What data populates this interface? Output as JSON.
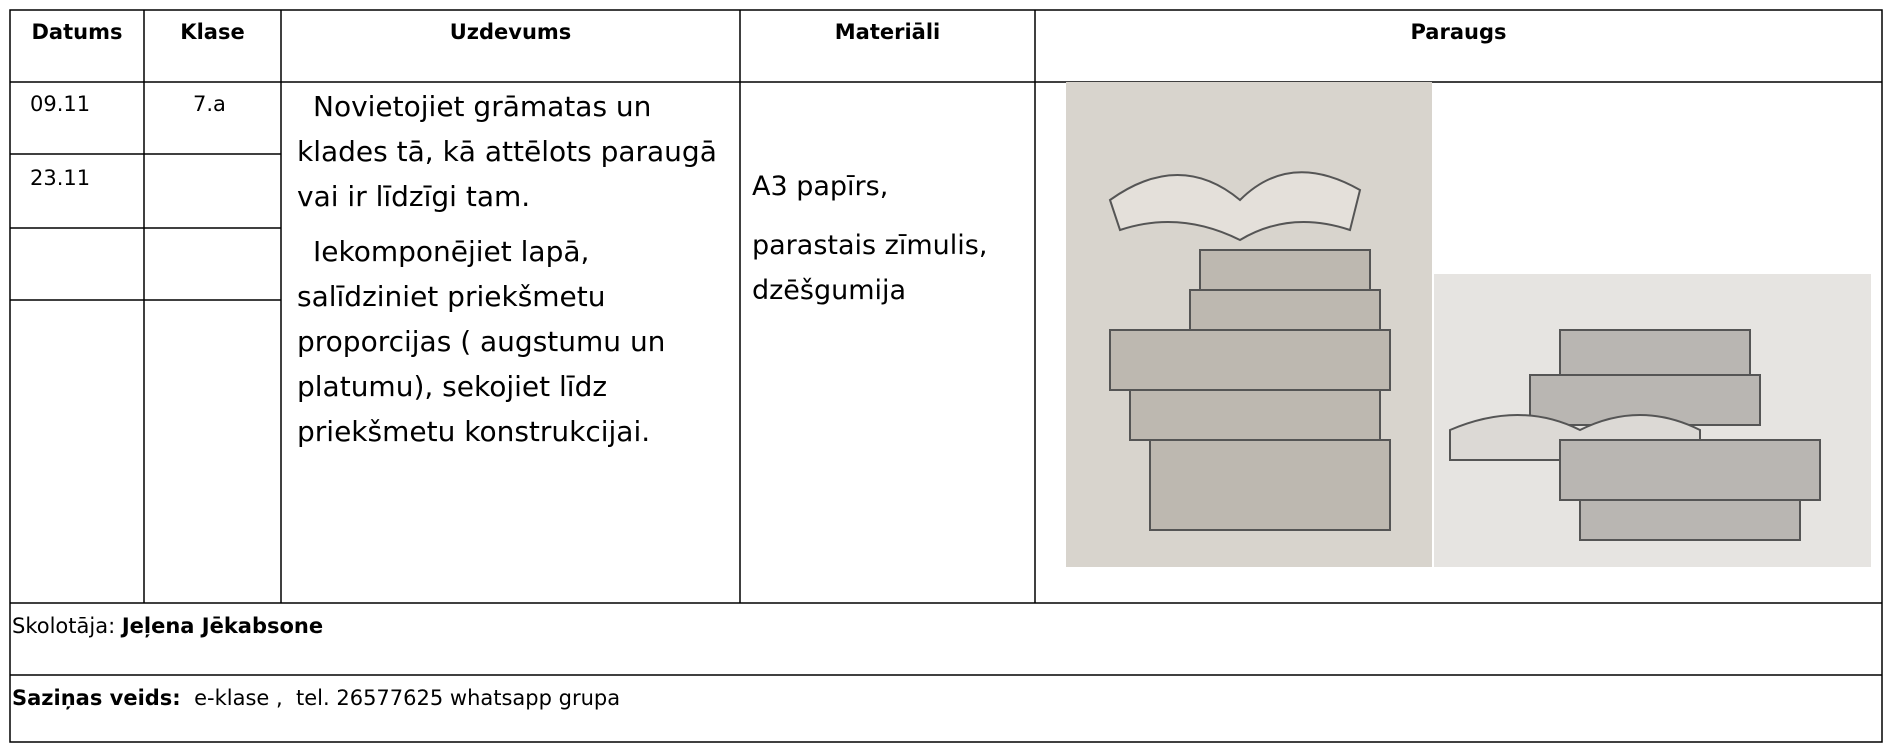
{
  "table": {
    "header": [
      "Datums",
      "Klase",
      "Uzdevums",
      "Materiāli",
      "Paraugs"
    ],
    "rows": [
      [
        "09.11",
        "7.a"
      ],
      [
        "23.11",
        ""
      ]
    ],
    "task": [
      "Novietojiet grāmatas un klades tā, kā attēlots paraugā vai ir līdzīgi tam.",
      "Iekomponējiet lapā, salīdziniet priekšmetu proporcijas ( augstumu un platumu), sekojiet līdz priekšmetu konstrukcijai."
    ],
    "materials": [
      "A3 papīrs,",
      "parastais zīmulis,",
      "dzēšgumija"
    ]
  },
  "teacher": {
    "label": "Skolotāja:",
    "name": "Jeļena Jēkabsone"
  },
  "contact": {
    "label": "Saziņas veids:",
    "text": "e-klase ,  tel. 26577625 whatsapp grupa"
  }
}
